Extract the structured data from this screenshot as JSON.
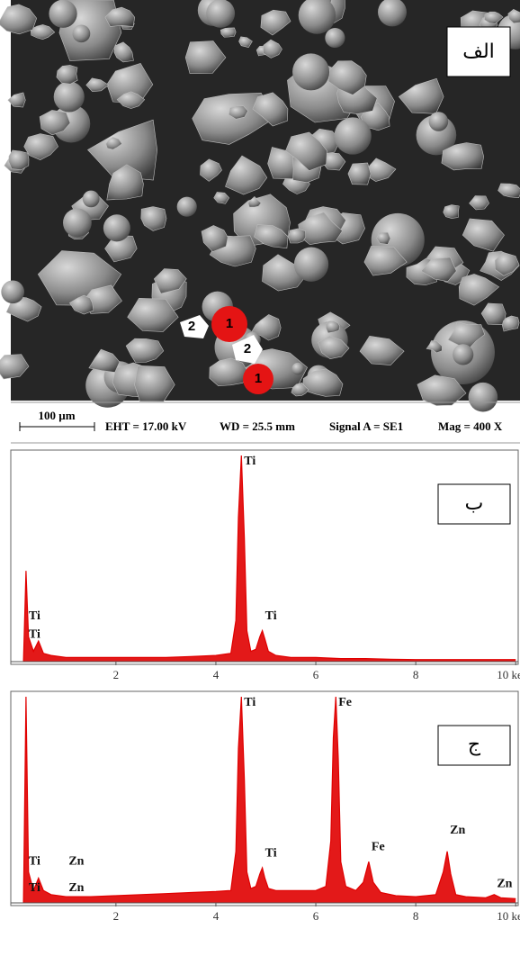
{
  "sem_image": {
    "panel_label": "الف",
    "markers": [
      "2",
      "1",
      "2",
      "1"
    ],
    "scale_bar": "100 µm",
    "info": [
      "EHT = 17.00 kV",
      "WD = 25.5 mm",
      "Signal A = SE1",
      "Mag = 400 X"
    ]
  },
  "chart_data": [
    {
      "type": "area",
      "panel_label": "ب",
      "color": "#e00000",
      "x": [
        0.15,
        0.2,
        0.25,
        0.35,
        0.45,
        0.55,
        0.7,
        1.0,
        1.5,
        2.0,
        2.5,
        3.0,
        3.5,
        4.0,
        4.3,
        4.4,
        4.45,
        4.51,
        4.57,
        4.62,
        4.7,
        4.8,
        4.88,
        4.93,
        4.98,
        5.05,
        5.2,
        5.5,
        6.0,
        6.5,
        7.0,
        7.5,
        8.0,
        8.5,
        9.0,
        9.5,
        10.0
      ],
      "values": [
        0,
        44,
        12,
        5,
        10,
        4,
        3,
        2,
        2,
        2,
        2,
        2,
        2.5,
        3,
        4,
        20,
        70,
        100,
        60,
        15,
        5,
        6,
        12,
        15,
        11,
        5,
        3,
        2,
        2,
        1.5,
        1.5,
        1.2,
        1,
        1,
        1,
        1,
        1
      ],
      "xlim": [
        -0.05,
        10.05
      ],
      "ylim": [
        0,
        100
      ],
      "xticks": [
        2,
        4,
        6,
        8,
        {
          "value": 10,
          "label": "10 keV"
        }
      ],
      "annotations": [
        {
          "text": "Ti",
          "x": 4.51,
          "y": 97
        },
        {
          "text": "Ti",
          "x": 4.93,
          "y": 22
        },
        {
          "text": "Ti",
          "x": 0.2,
          "y": 22
        },
        {
          "text": "Ti",
          "x": 0.2,
          "y": 13
        }
      ]
    },
    {
      "type": "area",
      "panel_label": "ج",
      "color": "#e00000",
      "x": [
        0.15,
        0.2,
        0.25,
        0.35,
        0.45,
        0.55,
        0.7,
        1.0,
        1.5,
        2.0,
        2.5,
        3.0,
        3.5,
        4.0,
        4.3,
        4.4,
        4.45,
        4.51,
        4.57,
        4.62,
        4.7,
        4.8,
        4.88,
        4.93,
        4.98,
        5.05,
        5.2,
        5.5,
        6.0,
        6.2,
        6.3,
        6.35,
        6.4,
        6.45,
        6.5,
        6.6,
        6.8,
        6.95,
        7.06,
        7.15,
        7.3,
        7.6,
        8.0,
        8.4,
        8.55,
        8.63,
        8.7,
        8.8,
        9.0,
        9.4,
        9.57,
        9.7,
        10.0
      ],
      "values": [
        0,
        100,
        15,
        6,
        12,
        6,
        4,
        3,
        3,
        3.5,
        4,
        4.5,
        5,
        5.5,
        6,
        25,
        75,
        100,
        60,
        15,
        7,
        8,
        14,
        17,
        12,
        7,
        6,
        6,
        6,
        8,
        30,
        80,
        100,
        70,
        20,
        8,
        6,
        10,
        20,
        10,
        5,
        3.5,
        3,
        4,
        15,
        25,
        14,
        4,
        3,
        2.5,
        4,
        2.5,
        2
      ],
      "xlim": [
        -0.05,
        10.05
      ],
      "ylim": [
        0,
        100
      ],
      "xticks": [
        2,
        4,
        6,
        8,
        {
          "value": 10,
          "label": "10 keV"
        }
      ],
      "annotations": [
        {
          "text": "Ti",
          "x": 4.51,
          "y": 97
        },
        {
          "text": "Fe",
          "x": 6.4,
          "y": 97
        },
        {
          "text": "Ti",
          "x": 4.93,
          "y": 24
        },
        {
          "text": "Fe",
          "x": 7.06,
          "y": 27
        },
        {
          "text": "Zn",
          "x": 8.63,
          "y": 35
        },
        {
          "text": "Zn",
          "x": 9.57,
          "y": 9
        },
        {
          "text": "Ti",
          "x": 0.2,
          "y": 20
        },
        {
          "text": "Zn",
          "x": 1.0,
          "y": 20
        },
        {
          "text": "Ti",
          "x": 0.2,
          "y": 7
        },
        {
          "text": "Zn",
          "x": 1.0,
          "y": 7
        }
      ]
    }
  ]
}
